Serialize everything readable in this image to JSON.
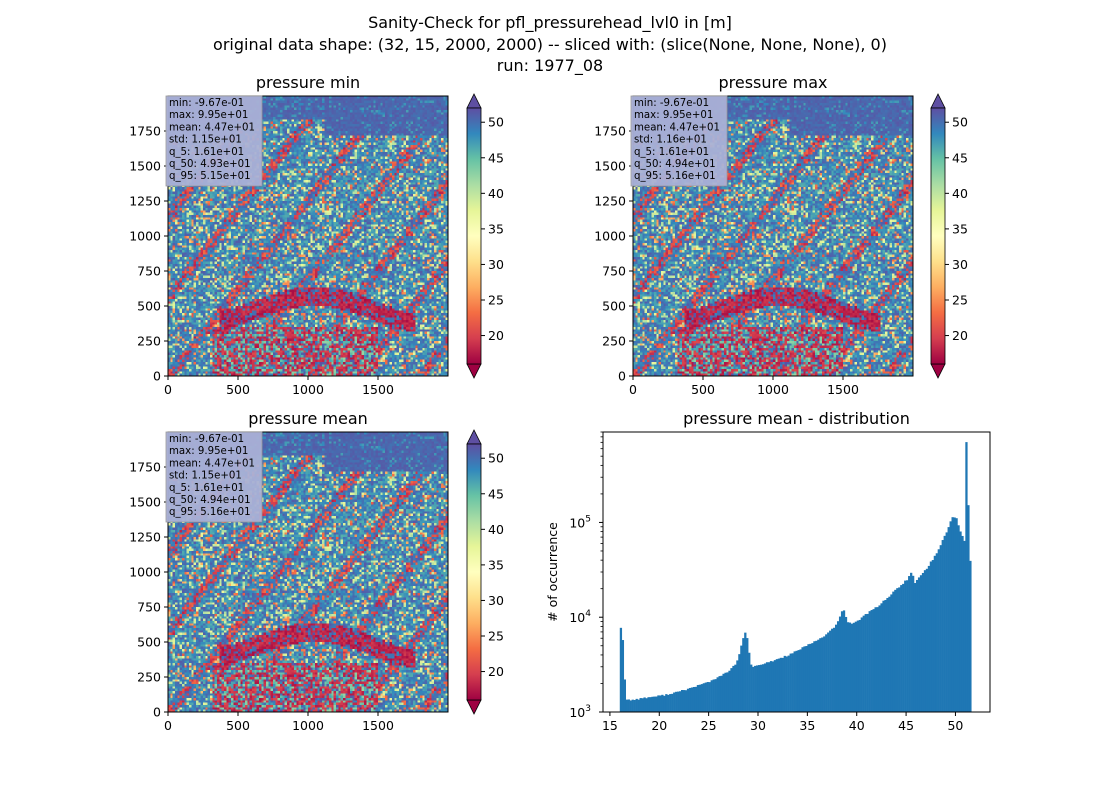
{
  "figure": {
    "title_lines": [
      "Sanity-Check for pfl_pressurehead_lvl0 in [m]",
      "original data shape: (32, 15, 2000, 2000) -- sliced with: (slice(None, None, None), 0)",
      "run: 1977_08"
    ]
  },
  "colors": {
    "hist_bar": "#1f77b4",
    "stats_box": "#aab0d6",
    "colormap": "Spectral",
    "colormap_stops": [
      "#9e0142",
      "#d53e4f",
      "#f46d43",
      "#fdae61",
      "#fee08b",
      "#ffffbf",
      "#e6f598",
      "#abdda4",
      "#66c2a5",
      "#3288bd",
      "#5e4fa2"
    ]
  },
  "chart_data": [
    {
      "type": "heatmap",
      "title": "pressure min",
      "x_ticks": [
        "0",
        "500",
        "1000",
        "1500"
      ],
      "y_ticks": [
        "0",
        "250",
        "500",
        "750",
        "1000",
        "1250",
        "1500",
        "1750"
      ],
      "xlim": [
        0,
        2000
      ],
      "ylim": [
        0,
        2000
      ],
      "colorbar": {
        "ticks": [
          "20",
          "25",
          "30",
          "35",
          "40",
          "45",
          "50"
        ],
        "range": [
          16,
          52
        ],
        "extend": "both"
      },
      "stats": [
        "min: -9.67e-01",
        "max: 9.95e+01",
        "mean: 4.47e+01",
        "std: 1.15e+01",
        "q_5: 1.61e+01",
        "q_50: 4.93e+01",
        "q_95: 5.15e+01"
      ]
    },
    {
      "type": "heatmap",
      "title": "pressure max",
      "x_ticks": [
        "0",
        "500",
        "1000",
        "1500"
      ],
      "y_ticks": [
        "0",
        "250",
        "500",
        "750",
        "1000",
        "1250",
        "1500",
        "1750"
      ],
      "xlim": [
        0,
        2000
      ],
      "ylim": [
        0,
        2000
      ],
      "colorbar": {
        "ticks": [
          "20",
          "25",
          "30",
          "35",
          "40",
          "45",
          "50"
        ],
        "range": [
          16,
          52
        ],
        "extend": "both"
      },
      "stats": [
        "min: -9.67e-01",
        "max: 9.95e+01",
        "mean: 4.47e+01",
        "std: 1.16e+01",
        "q_5: 1.61e+01",
        "q_50: 4.94e+01",
        "q_95: 5.16e+01"
      ]
    },
    {
      "type": "heatmap",
      "title": "pressure mean",
      "x_ticks": [
        "0",
        "500",
        "1000",
        "1500"
      ],
      "y_ticks": [
        "0",
        "250",
        "500",
        "750",
        "1000",
        "1250",
        "1500",
        "1750"
      ],
      "xlim": [
        0,
        2000
      ],
      "ylim": [
        0,
        2000
      ],
      "colorbar": {
        "ticks": [
          "20",
          "25",
          "30",
          "35",
          "40",
          "45",
          "50"
        ],
        "range": [
          16,
          52
        ],
        "extend": "both"
      },
      "stats": [
        "min: -9.67e-01",
        "max: 9.95e+01",
        "mean: 4.47e+01",
        "std: 1.15e+01",
        "q_5: 1.61e+01",
        "q_50: 4.94e+01",
        "q_95: 5.16e+01"
      ]
    },
    {
      "type": "bar",
      "title": "pressure mean - distribution",
      "xlabel": "",
      "ylabel": "# of occurrence",
      "x_ticks": [
        "15",
        "20",
        "25",
        "30",
        "35",
        "40",
        "45",
        "50"
      ],
      "y_ticks": [
        {
          "base": "10",
          "exp": "3"
        },
        {
          "base": "10",
          "exp": "4"
        },
        {
          "base": "10",
          "exp": "5"
        }
      ],
      "xlim": [
        14.3,
        53.5
      ],
      "ylim": [
        1000,
        900000
      ],
      "y_scale": "log",
      "bin_width": 0.2,
      "points": [
        [
          16.0,
          7800
        ],
        [
          16.2,
          5800
        ],
        [
          16.4,
          2200
        ],
        [
          16.6,
          1350
        ],
        [
          17,
          1340
        ],
        [
          17.5,
          1360
        ],
        [
          18,
          1390
        ],
        [
          18.5,
          1410
        ],
        [
          19,
          1440
        ],
        [
          20,
          1480
        ],
        [
          21,
          1560
        ],
        [
          22,
          1650
        ],
        [
          23,
          1780
        ],
        [
          24,
          1930
        ],
        [
          25,
          2100
        ],
        [
          26,
          2350
        ],
        [
          27,
          2750
        ],
        [
          27.6,
          3150
        ],
        [
          28.0,
          4000
        ],
        [
          28.3,
          5500
        ],
        [
          28.5,
          6800
        ],
        [
          28.7,
          7000
        ],
        [
          28.9,
          5200
        ],
        [
          29.1,
          3300
        ],
        [
          29.4,
          3000
        ],
        [
          30,
          3100
        ],
        [
          31,
          3350
        ],
        [
          32,
          3650
        ],
        [
          33,
          4000
        ],
        [
          34,
          4500
        ],
        [
          35,
          5100
        ],
        [
          36,
          5800
        ],
        [
          37,
          6800
        ],
        [
          37.8,
          8200
        ],
        [
          38.2,
          10000
        ],
        [
          38.5,
          12500
        ],
        [
          38.7,
          11000
        ],
        [
          39.0,
          8800
        ],
        [
          39.5,
          8600
        ],
        [
          40,
          9200
        ],
        [
          41,
          11000
        ],
        [
          42,
          13000
        ],
        [
          43,
          16000
        ],
        [
          44,
          20000
        ],
        [
          45,
          25000
        ],
        [
          45.5,
          30000
        ],
        [
          45.8,
          23000
        ],
        [
          46.2,
          26000
        ],
        [
          47,
          33000
        ],
        [
          48,
          47000
        ],
        [
          49,
          80000
        ],
        [
          49.6,
          115000
        ],
        [
          50.0,
          110000
        ],
        [
          50.4,
          80000
        ],
        [
          50.8,
          65000
        ],
        [
          51.0,
          700000
        ],
        [
          51.2,
          150000
        ],
        [
          51.4,
          40000
        ]
      ]
    }
  ]
}
